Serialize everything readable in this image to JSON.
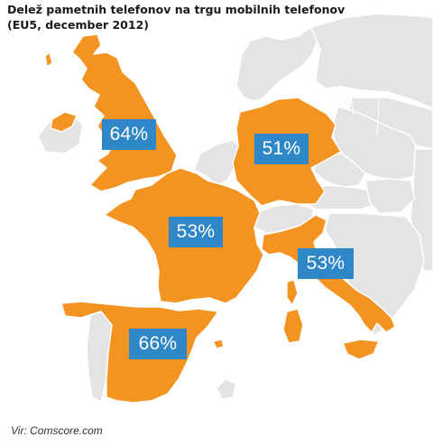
{
  "title": {
    "line1": "Delež pametnih telefonov na trgu mobilnih telefonov",
    "line2": "(EU5, december 2012)"
  },
  "colors": {
    "highlight": "#f39321",
    "other_land": "#e4e4e4",
    "sea": "#ffffff",
    "label_bg": "#2f87c8",
    "label_text": "#ffffff"
  },
  "countries": [
    {
      "id": "uk",
      "value": "64%"
    },
    {
      "id": "germany",
      "value": "51%"
    },
    {
      "id": "france",
      "value": "53%"
    },
    {
      "id": "italy",
      "value": "53%"
    },
    {
      "id": "spain",
      "value": "66%"
    }
  ],
  "source": "Vir: Comscore.com"
}
